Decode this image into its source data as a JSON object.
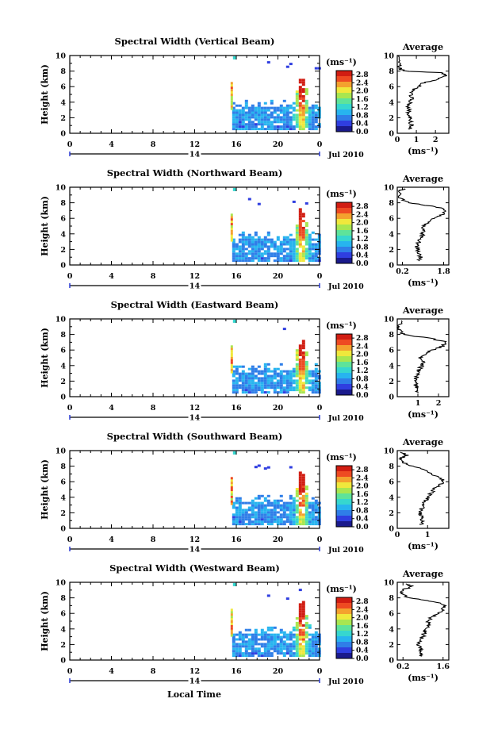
{
  "chart_data": {
    "type": "heatmap",
    "x_axis_label": "Local Time",
    "x_ticks": [
      "0",
      "4",
      "8",
      "12",
      "16",
      "20",
      "0"
    ],
    "x_range": [
      0,
      24
    ],
    "date_label": "Jul 2010",
    "day_label": "14",
    "y_label": "Height (km)",
    "y_ticks": [
      "0",
      "2",
      "4",
      "6",
      "8",
      "10"
    ],
    "y_range": [
      0,
      10
    ],
    "units_label": "(ms⁻¹)",
    "colorbar_ticks": [
      "2.8",
      "2.4",
      "2.0",
      "1.6",
      "1.2",
      "0.8",
      "0.4",
      "0.0"
    ],
    "colorbar_range": [
      0.0,
      3.0
    ],
    "average_title": "Average",
    "average_xlabel": "(ms⁻¹)",
    "panels": [
      {
        "title": "Spectral Width (Vertical Beam)",
        "avg_xticks": [
          "0",
          "1",
          "2"
        ],
        "avg_xtick_vals": [
          0,
          1,
          2
        ],
        "avg_xlim": [
          0,
          2.7
        ],
        "avg_profile": [
          [
            0.7,
            0.5
          ],
          [
            0.75,
            1.0
          ],
          [
            0.7,
            1.5
          ],
          [
            0.65,
            2.0
          ],
          [
            0.6,
            2.5
          ],
          [
            0.6,
            3.0
          ],
          [
            0.55,
            3.5
          ],
          [
            0.7,
            4.0
          ],
          [
            0.75,
            4.5
          ],
          [
            0.7,
            5.0
          ],
          [
            0.8,
            5.5
          ],
          [
            1.1,
            6.0
          ],
          [
            1.4,
            6.5
          ],
          [
            2.2,
            7.0
          ],
          [
            2.6,
            7.4
          ],
          [
            2.3,
            7.8
          ],
          [
            0.4,
            8.0
          ],
          [
            0.1,
            8.4
          ],
          [
            0.05,
            9.0
          ],
          [
            0.02,
            10.0
          ]
        ]
      },
      {
        "title": "Spectral Width (Northward Beam)",
        "avg_xticks": [
          "0.2",
          "1.8"
        ],
        "avg_xtick_vals": [
          0.2,
          1.8
        ],
        "avg_xlim": [
          0.0,
          2.0
        ],
        "avg_profile": [
          [
            0.8,
            0.5
          ],
          [
            0.9,
            1.0
          ],
          [
            0.85,
            1.5
          ],
          [
            0.8,
            2.0
          ],
          [
            0.75,
            2.5
          ],
          [
            0.85,
            3.0
          ],
          [
            0.9,
            3.5
          ],
          [
            1.0,
            4.0
          ],
          [
            1.05,
            4.5
          ],
          [
            1.0,
            5.0
          ],
          [
            1.2,
            5.5
          ],
          [
            1.45,
            6.0
          ],
          [
            1.8,
            6.5
          ],
          [
            1.9,
            7.0
          ],
          [
            1.5,
            7.5
          ],
          [
            0.4,
            8.0
          ],
          [
            0.15,
            8.5
          ],
          [
            0.05,
            9.5
          ],
          [
            0.25,
            9.8
          ]
        ]
      },
      {
        "title": "Spectral Width (Eastward Beam)",
        "avg_xticks": [
          "1",
          "2"
        ],
        "avg_xtick_vals": [
          1,
          2
        ],
        "avg_xlim": [
          0,
          2.5
        ],
        "avg_profile": [
          [
            0.9,
            0.5
          ],
          [
            1.0,
            1.0
          ],
          [
            0.9,
            1.5
          ],
          [
            0.85,
            2.0
          ],
          [
            0.95,
            2.5
          ],
          [
            1.0,
            3.0
          ],
          [
            1.05,
            3.5
          ],
          [
            1.2,
            4.0
          ],
          [
            1.3,
            4.5
          ],
          [
            1.1,
            5.0
          ],
          [
            1.4,
            5.5
          ],
          [
            1.7,
            6.0
          ],
          [
            2.2,
            6.5
          ],
          [
            2.4,
            7.0
          ],
          [
            1.6,
            7.5
          ],
          [
            0.3,
            8.0
          ],
          [
            0.1,
            8.5
          ],
          [
            0.05,
            9.0
          ],
          [
            0.2,
            9.8
          ]
        ]
      },
      {
        "title": "Spectral Width (Southward Beam)",
        "avg_xticks": [
          "0",
          "1"
        ],
        "avg_xtick_vals": [
          0,
          1
        ],
        "avg_xlim": [
          0,
          1.7
        ],
        "avg_profile": [
          [
            0.8,
            0.5
          ],
          [
            0.85,
            1.0
          ],
          [
            0.8,
            1.5
          ],
          [
            0.75,
            2.0
          ],
          [
            0.8,
            2.5
          ],
          [
            0.85,
            3.0
          ],
          [
            0.9,
            3.5
          ],
          [
            1.05,
            4.0
          ],
          [
            1.1,
            4.5
          ],
          [
            1.2,
            5.0
          ],
          [
            1.35,
            5.5
          ],
          [
            1.55,
            6.0
          ],
          [
            1.4,
            6.5
          ],
          [
            1.1,
            7.0
          ],
          [
            0.9,
            7.5
          ],
          [
            0.5,
            8.0
          ],
          [
            0.2,
            8.5
          ],
          [
            0.1,
            9.0
          ],
          [
            0.3,
            9.4
          ],
          [
            0.1,
            9.8
          ]
        ]
      },
      {
        "title": "Spectral Width (Westward Beam)",
        "avg_xticks": [
          "0.2",
          "1.6"
        ],
        "avg_xtick_vals": [
          0.2,
          1.6
        ],
        "avg_xlim": [
          0.0,
          1.8
        ],
        "avg_profile": [
          [
            0.8,
            0.5
          ],
          [
            0.85,
            1.0
          ],
          [
            0.8,
            1.5
          ],
          [
            0.75,
            2.0
          ],
          [
            0.8,
            2.5
          ],
          [
            0.9,
            3.0
          ],
          [
            0.95,
            3.5
          ],
          [
            1.0,
            4.0
          ],
          [
            1.1,
            4.5
          ],
          [
            1.05,
            5.0
          ],
          [
            1.2,
            5.5
          ],
          [
            1.4,
            6.0
          ],
          [
            1.6,
            6.5
          ],
          [
            1.7,
            7.0
          ],
          [
            1.3,
            7.5
          ],
          [
            0.4,
            8.0
          ],
          [
            0.15,
            8.5
          ],
          [
            0.2,
            9.0
          ],
          [
            0.5,
            9.5
          ],
          [
            0.3,
            9.8
          ]
        ]
      }
    ]
  },
  "colors": {
    "colorbar": [
      "#1a1a8c",
      "#2f3ee0",
      "#2f7ee8",
      "#27b4ef",
      "#36d7cf",
      "#5ee39a",
      "#a8e650",
      "#f0e83c",
      "#f4a12e",
      "#ee4a22",
      "#d11d12"
    ]
  }
}
